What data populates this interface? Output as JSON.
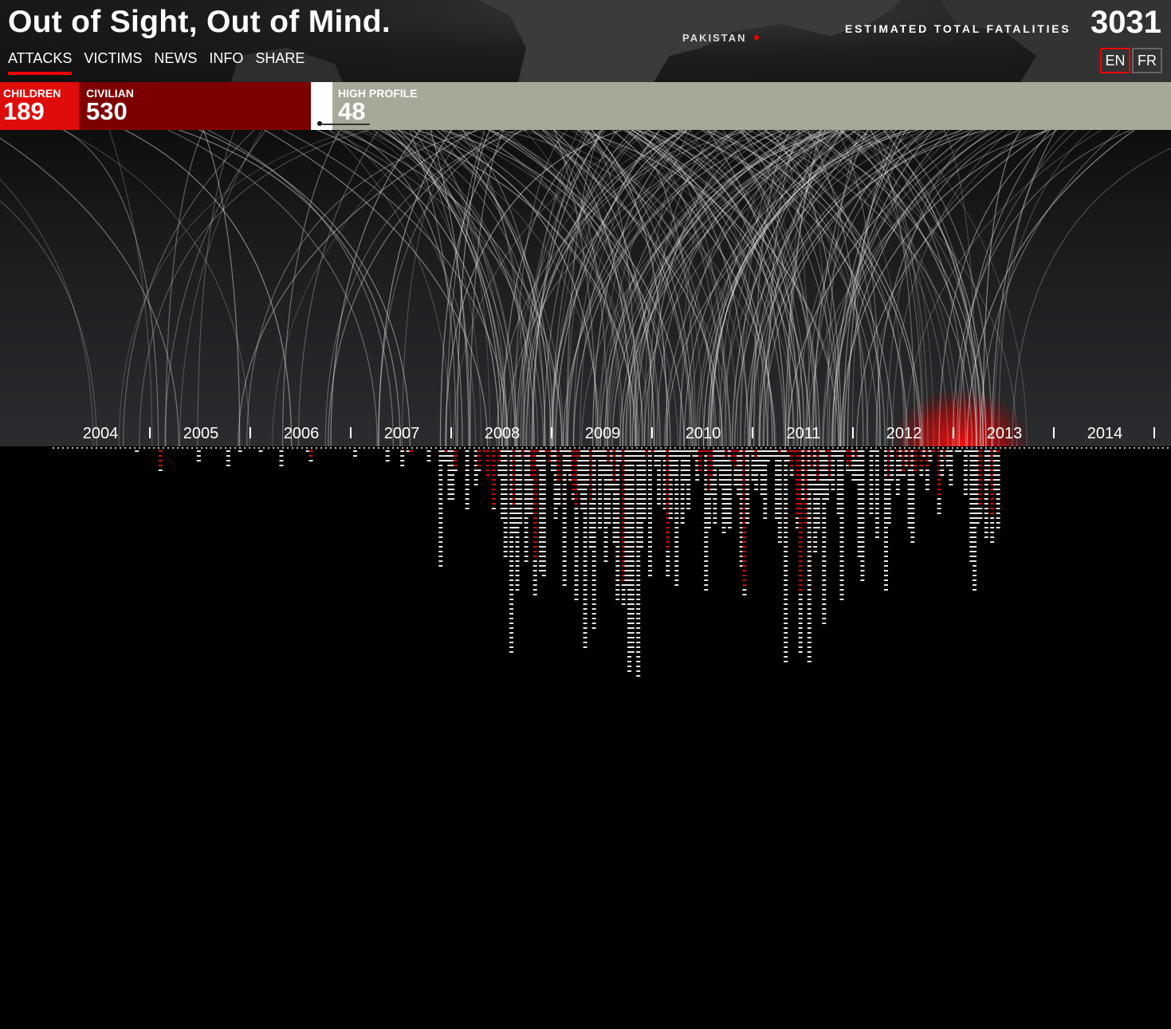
{
  "header": {
    "title": "Out of Sight, Out of Mind.",
    "nav": [
      "ATTACKS",
      "VICTIMS",
      "NEWS",
      "INFO",
      "SHARE"
    ],
    "active_nav": "ATTACKS",
    "map_label": "PAKISTAN",
    "fatalities_label": "ESTIMATED TOTAL FATALITIES",
    "fatalities_value": "3031",
    "languages": [
      "EN",
      "FR"
    ],
    "active_language": "EN"
  },
  "stats": {
    "children_label": "CHILDREN",
    "children_value": "189",
    "civilian_label": "CIVILIAN",
    "civilian_value": "530",
    "high_profile_label": "HIGH PROFILE",
    "high_profile_value": "48"
  },
  "colors": {
    "accent": "#e00b0b",
    "children": "#e00b0b",
    "civilian": "#7d0000",
    "high_profile": "#a8a898",
    "other": "#ffffff"
  },
  "timeline": {
    "years": [
      "2004",
      "2005",
      "2006",
      "2007",
      "2008",
      "2009",
      "2010",
      "2011",
      "2012",
      "2013",
      "2014"
    ]
  }
}
